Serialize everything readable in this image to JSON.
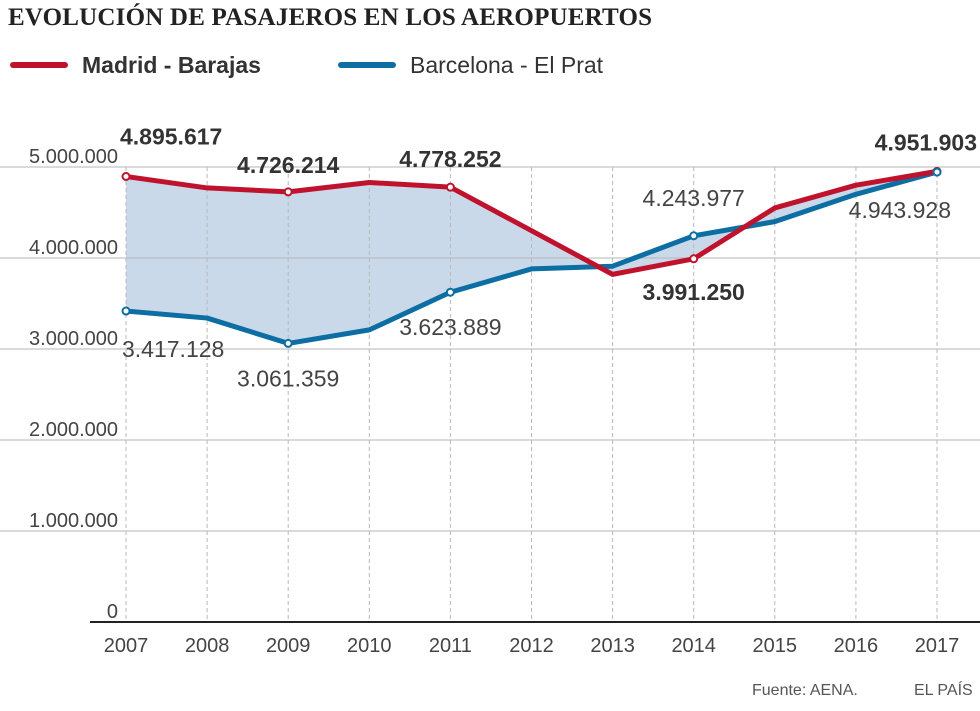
{
  "chart_data": {
    "type": "line",
    "title": "EVOLUCIÓN DE PASAJEROS EN LOS AEROPUERTOS",
    "xlabel": "",
    "ylabel": "",
    "x": [
      "2007",
      "2008",
      "2009",
      "2010",
      "2011",
      "2012",
      "2013",
      "2014",
      "2015",
      "2016",
      "2017"
    ],
    "ylim": [
      0,
      5000000
    ],
    "yticks": [
      0,
      1000000,
      2000000,
      3000000,
      4000000,
      5000000
    ],
    "ytick_labels": [
      "0",
      "1.000.000",
      "2.000.000",
      "3.000.000",
      "4.000.000",
      "5.000.000"
    ],
    "series": [
      {
        "name": "Madrid - Barajas",
        "color": "#c0122c",
        "values": [
          4895617,
          4770000,
          4726214,
          4830000,
          4778252,
          4300000,
          3820000,
          3991250,
          4550000,
          4800000,
          4951903
        ]
      },
      {
        "name": "Barcelona - El Prat",
        "color": "#0c6ea3",
        "values": [
          3417128,
          3340000,
          3061359,
          3210000,
          3623889,
          3880000,
          3910000,
          4243977,
          4400000,
          4700000,
          4943928
        ]
      }
    ],
    "data_labels": [
      {
        "series": 0,
        "index": 0,
        "text": "4.895.617"
      },
      {
        "series": 0,
        "index": 2,
        "text": "4.726.214"
      },
      {
        "series": 0,
        "index": 4,
        "text": "4.778.252"
      },
      {
        "series": 0,
        "index": 7,
        "text": "3.991.250"
      },
      {
        "series": 0,
        "index": 10,
        "text": "4.951.903"
      },
      {
        "series": 1,
        "index": 0,
        "text": "3.417.128"
      },
      {
        "series": 1,
        "index": 2,
        "text": "3.061.359"
      },
      {
        "series": 1,
        "index": 4,
        "text": "3.623.889"
      },
      {
        "series": 1,
        "index": 7,
        "text": "4.243.977"
      },
      {
        "series": 1,
        "index": 10,
        "text": "4.943.928"
      }
    ],
    "fill_color": "#c9d9ea",
    "grid": true
  },
  "legend": {
    "madrid": "Madrid - Barajas",
    "barcelona": "Barcelona - El Prat"
  },
  "footer": {
    "source": "Fuente: AENA.",
    "credit": "EL PAÍS"
  }
}
